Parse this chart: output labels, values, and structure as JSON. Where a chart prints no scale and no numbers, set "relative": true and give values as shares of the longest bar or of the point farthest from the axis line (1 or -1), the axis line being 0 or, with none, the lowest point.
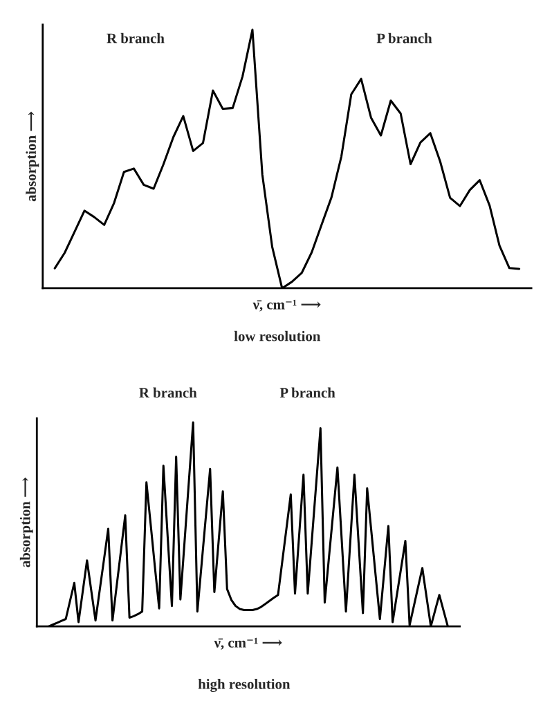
{
  "chart_data": [
    {
      "type": "line",
      "relative": true,
      "xlabel": "ν̄, cm⁻¹ ⟶",
      "ylabel": "absorption ⟶",
      "annotations": [
        "R branch",
        "P branch",
        "low resolution"
      ],
      "categories": [
        null,
        null,
        null,
        null,
        null,
        null,
        null,
        null,
        null,
        null,
        null,
        null,
        null,
        null,
        null,
        null,
        null,
        null,
        null,
        null,
        null,
        null,
        null,
        null,
        null,
        null,
        null,
        null,
        null,
        null,
        null,
        null,
        null,
        null,
        null,
        null,
        null,
        null,
        null,
        null,
        null,
        null,
        null,
        null,
        null,
        null,
        null,
        null
      ],
      "series": [
        {
          "color": "#000000",
          "values": [
            0.077,
            0.137,
            0.218,
            0.3,
            0.275,
            0.245,
            0.33,
            0.45,
            0.463,
            0.4,
            0.385,
            0.48,
            0.585,
            0.666,
            0.531,
            0.562,
            0.765,
            0.694,
            0.697,
            0.82,
            1.0,
            0.44,
            0.16,
            0,
            0.025,
            0.06,
            0.139,
            0.246,
            0.352,
            0.51,
            0.75,
            0.81,
            0.66,
            0.591,
            0.726,
            0.676,
            0.48,
            0.564,
            0.6,
            0.49,
            0.35,
            0.318,
            0.38,
            0.418,
            0.32,
            0.165,
            0.078,
            0.075
          ]
        }
      ]
    },
    {
      "type": "line",
      "relative": true,
      "xlabel": "ν̄, cm⁻¹ ⟶",
      "ylabel": "absorption ⟶",
      "annotations": [
        "R branch",
        "P branch",
        "high resolution"
      ],
      "categories": [
        null,
        null,
        null,
        null,
        null,
        null,
        null,
        null,
        null,
        null,
        null,
        null,
        null,
        null,
        null,
        null,
        null,
        null,
        null,
        null,
        null,
        null,
        null,
        null,
        null,
        null,
        null,
        null,
        null,
        null,
        null,
        null,
        null,
        null,
        null,
        null,
        null,
        null,
        null,
        null,
        null,
        null,
        null,
        null,
        null,
        null,
        null,
        null,
        null,
        null,
        null,
        null,
        null,
        null,
        null,
        null,
        null,
        null,
        null,
        null,
        null,
        null,
        null,
        null,
        null,
        null,
        null,
        null,
        null,
        null,
        null,
        null,
        null,
        null,
        null,
        null,
        null,
        null,
        null,
        null,
        null,
        null,
        null,
        null,
        null,
        null,
        null,
        null,
        null,
        null,
        null,
        null,
        null,
        null,
        null
      ],
      "series": [
        {
          "color": "#000000",
          "values": [
            0,
            0.009,
            0.018,
            0.027,
            0.036,
            0.125,
            0.213,
            0.021,
            0.172,
            0.323,
            0.176,
            0.029,
            0.179,
            0.328,
            0.478,
            0.029,
            0.201,
            0.372,
            0.544,
            0.043,
            0.05,
            0.06,
            0.073,
            0.706,
            0.5,
            0.29,
            0.088,
            0.787,
            0.44,
            0.1,
            0.831,
            0.132,
            0.421,
            0.711,
            1.0,
            0.073,
            0.306,
            0.539,
            0.772,
            0.168,
            0.415,
            0.662,
            0.183,
            0.13,
            0.1,
            0.085,
            0.08,
            0.08,
            0.08,
            0.085,
            0.095,
            0.11,
            0.125,
            0.14,
            0.154,
            0.318,
            0.482,
            0.647,
            0.161,
            0.452,
            0.743,
            0.161,
            0.431,
            0.701,
            0.971,
            0.117,
            0.338,
            0.558,
            0.779,
            0.426,
            0.073,
            0.408,
            0.743,
            0.404,
            0.065,
            0.676,
            0.463,
            0.249,
            0.036,
            0.264,
            0.492,
            0.021,
            0.154,
            0.286,
            0.419,
            0.006,
            0.099,
            0.193,
            0.286,
            0.143,
            0,
            0.077,
            0.154,
            0.077,
            0
          ]
        }
      ]
    }
  ]
}
